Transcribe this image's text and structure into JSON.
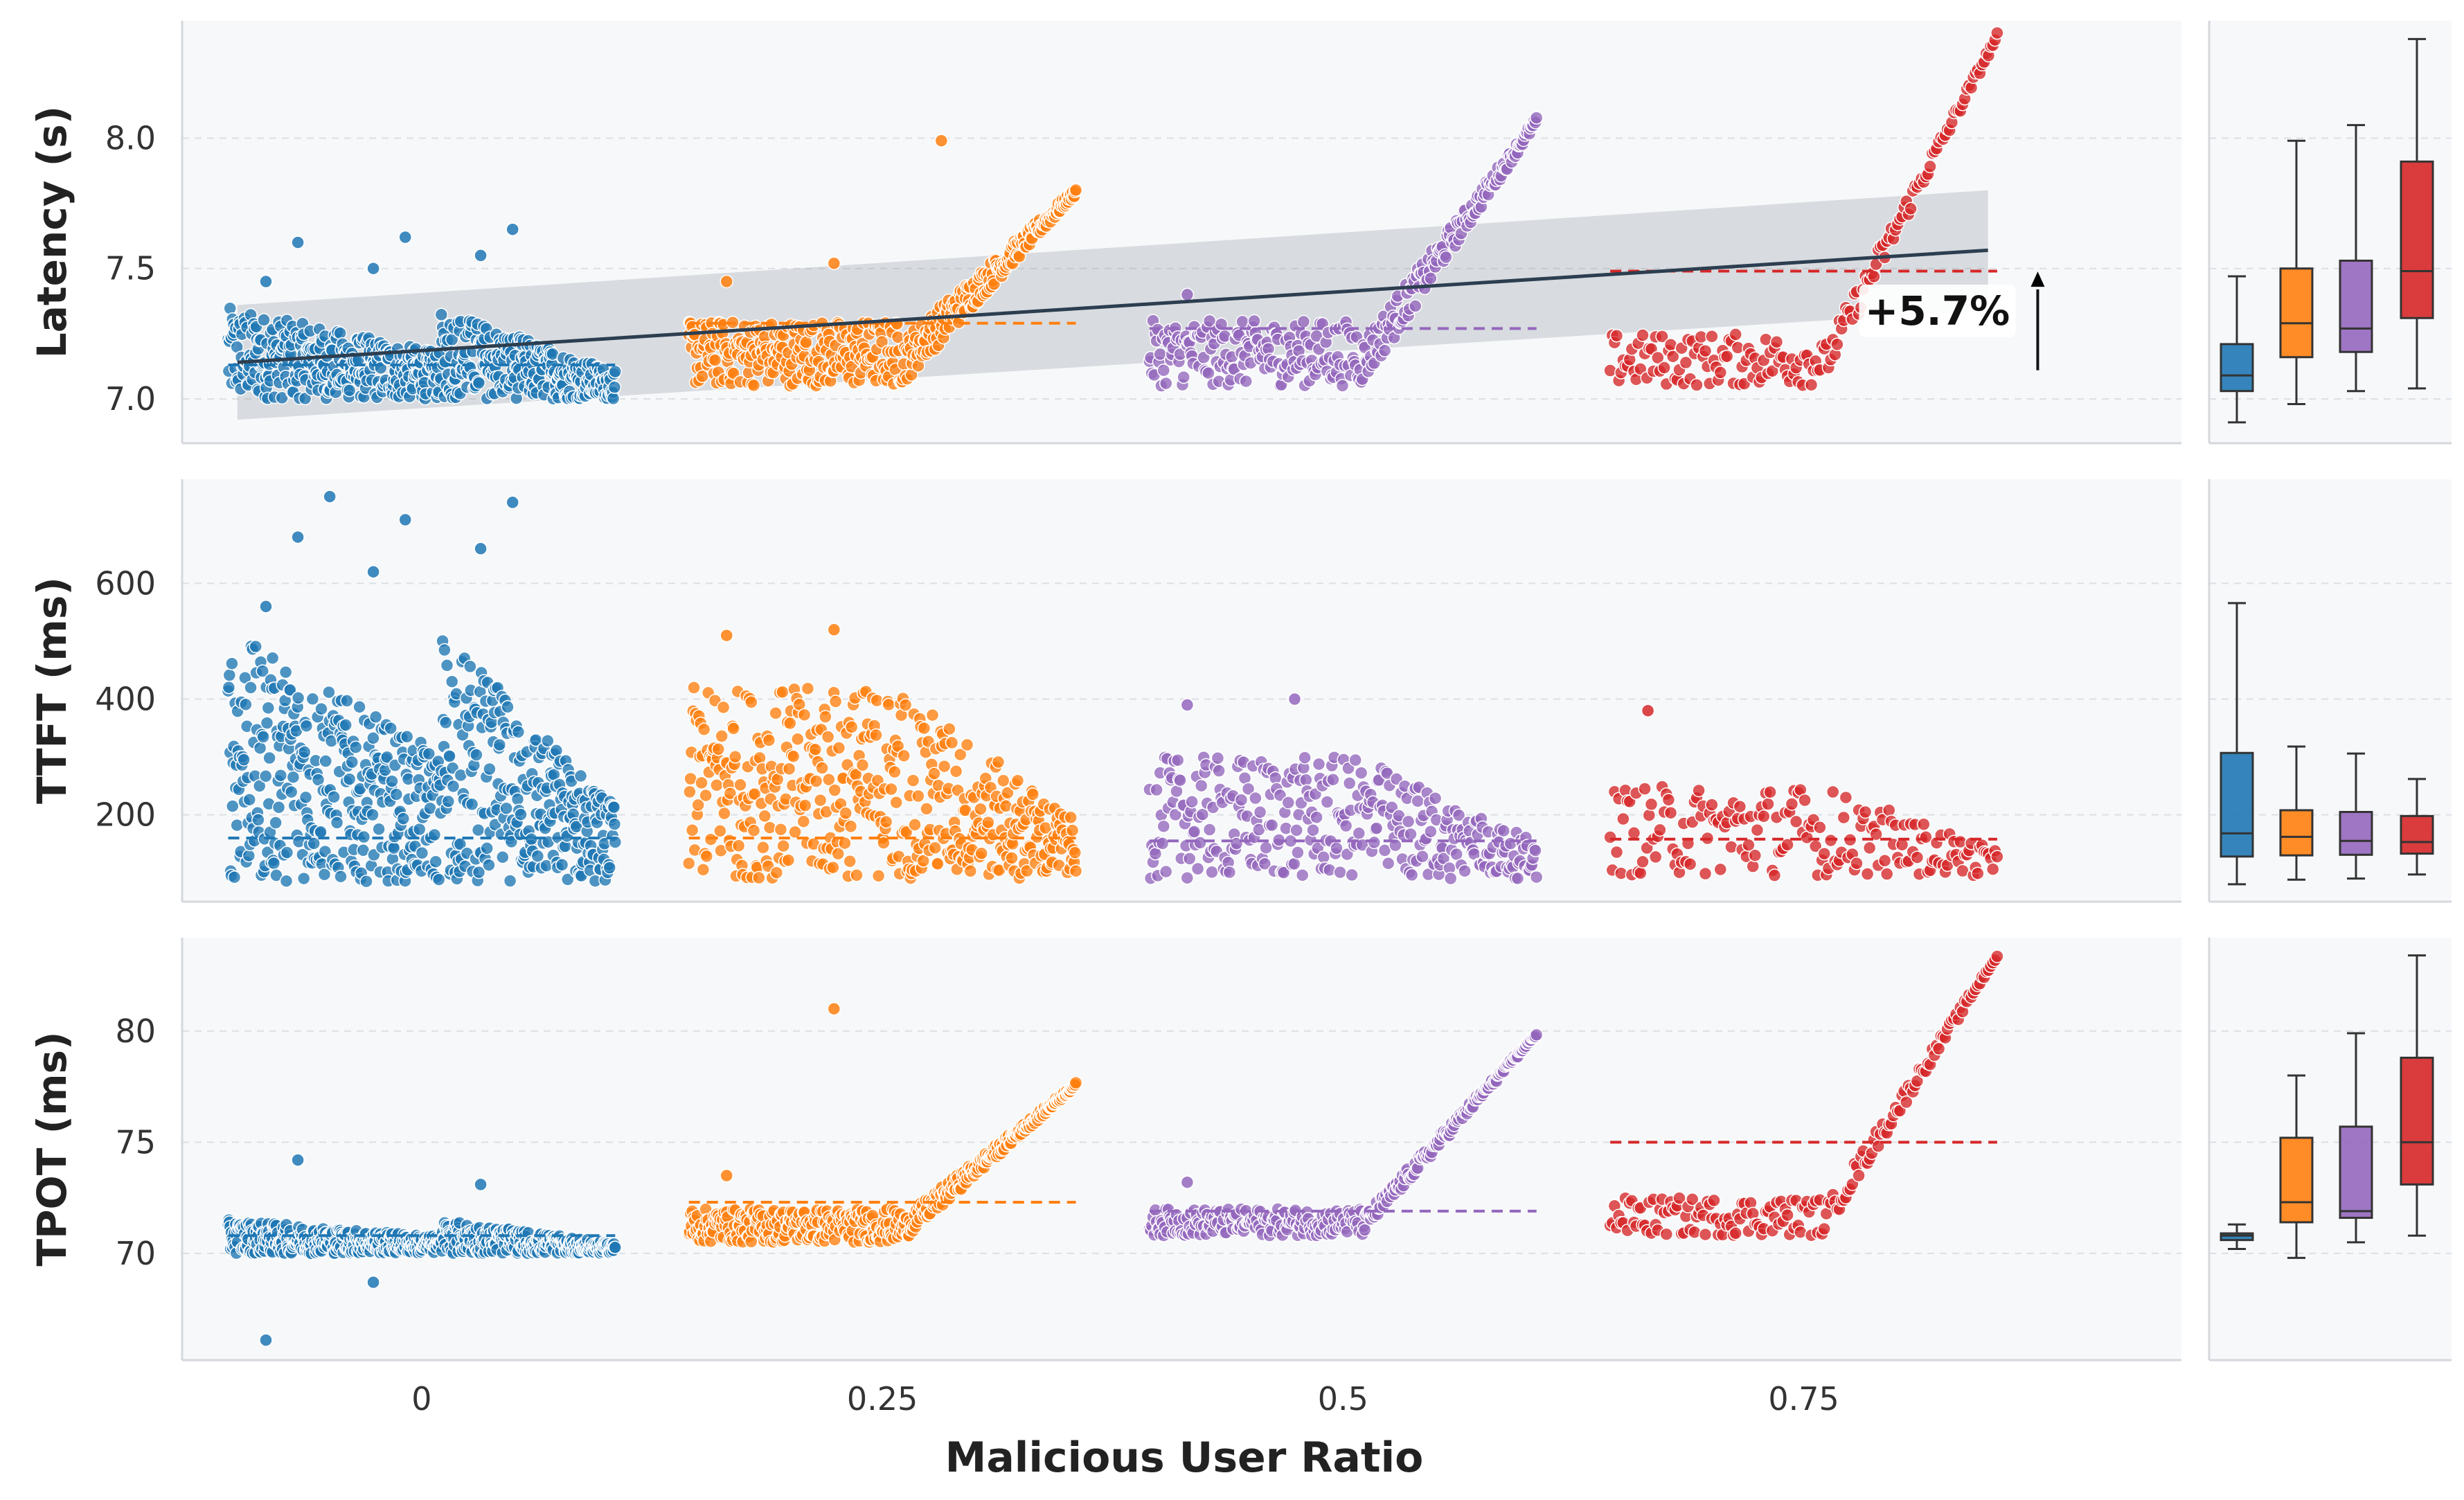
{
  "chart_data": {
    "type": "scatter",
    "title": "",
    "xlabel": "Malicious User Ratio",
    "categories": [
      "0",
      "0.25",
      "0.5",
      "0.75"
    ],
    "group_colors": [
      "#1f77b4",
      "#ff7f0e",
      "#9467bd",
      "#d62728"
    ],
    "panels": [
      {
        "ylabel": "Latency (s)",
        "ylim": [
          6.83,
          8.45
        ],
        "yticks": [
          "7.0",
          "7.5",
          "8.0"
        ],
        "ytick_values": [
          7.0,
          7.5,
          8.0
        ],
        "means": [
          7.13,
          7.29,
          7.27,
          7.49
        ],
        "scatter_ranges": [
          {
            "base_min": 7.0,
            "base_max": 7.35,
            "end": 7.05,
            "outliers": [
              7.45,
              7.5,
              7.55,
              7.6,
              7.62,
              7.65
            ]
          },
          {
            "base_min": 7.05,
            "base_max": 7.3,
            "end": 7.78,
            "outliers": [
              7.45,
              7.52,
              7.99
            ]
          },
          {
            "base_min": 7.05,
            "base_max": 7.3,
            "end": 8.05,
            "outliers": [
              7.4
            ]
          },
          {
            "base_min": 7.05,
            "base_max": 7.25,
            "end": 8.38,
            "outliers": []
          }
        ],
        "trend": {
          "start": 7.14,
          "end": 7.57,
          "ci_start": [
            6.92,
            7.36
          ],
          "ci_end": [
            7.34,
            7.8
          ]
        },
        "annotation": "+5.7%",
        "boxes": [
          {
            "whisker_low": 6.91,
            "q1": 7.03,
            "median": 7.09,
            "q3": 7.21,
            "whisker_high": 7.47
          },
          {
            "whisker_low": 6.98,
            "q1": 7.16,
            "median": 7.29,
            "q3": 7.5,
            "whisker_high": 7.99
          },
          {
            "whisker_low": 7.03,
            "q1": 7.18,
            "median": 7.27,
            "q3": 7.53,
            "whisker_high": 8.05
          },
          {
            "whisker_low": 7.04,
            "q1": 7.31,
            "median": 7.49,
            "q3": 7.91,
            "whisker_high": 8.38
          }
        ]
      },
      {
        "ylabel": "TTFT (ms)",
        "ylim": [
          50,
          780
        ],
        "yticks": [
          "200",
          "400",
          "600"
        ],
        "ytick_values": [
          200,
          400,
          600
        ],
        "means": [
          160,
          160,
          155,
          158
        ],
        "scatter_ranges": [
          {
            "base_min": 85,
            "base_max": 520,
            "end": 110,
            "outliers": [
              560,
              620,
              660,
              680,
              710,
              740,
              750
            ]
          },
          {
            "base_min": 90,
            "base_max": 420,
            "end": 120,
            "outliers": [
              510,
              520
            ]
          },
          {
            "base_min": 90,
            "base_max": 300,
            "end": 120,
            "outliers": [
              390,
              400
            ]
          },
          {
            "base_min": 95,
            "base_max": 250,
            "end": 140,
            "outliers": [
              380
            ]
          }
        ],
        "boxes": [
          {
            "whisker_low": 80,
            "q1": 128,
            "median": 168,
            "q3": 307,
            "whisker_high": 566
          },
          {
            "whisker_low": 88,
            "q1": 130,
            "median": 162,
            "q3": 208,
            "whisker_high": 318
          },
          {
            "whisker_low": 90,
            "q1": 131,
            "median": 155,
            "q3": 205,
            "whisker_high": 306
          },
          {
            "whisker_low": 97,
            "q1": 133,
            "median": 153,
            "q3": 198,
            "whisker_high": 262
          }
        ]
      },
      {
        "ylabel": "TPOT (ms)",
        "ylim": [
          65.2,
          84.2
        ],
        "yticks": [
          "70",
          "75",
          "80"
        ],
        "ytick_values": [
          70,
          75,
          80
        ],
        "means": [
          70.8,
          72.3,
          71.9,
          75.0
        ],
        "scatter_ranges": [
          {
            "base_min": 70.0,
            "base_max": 71.5,
            "end": 70.6,
            "outliers": [
              66.1,
              68.7,
              73.1,
              74.2
            ]
          },
          {
            "base_min": 70.5,
            "base_max": 72.0,
            "end": 77.5,
            "outliers": [
              73.5,
              81.0
            ]
          },
          {
            "base_min": 70.8,
            "base_max": 72.0,
            "end": 79.8,
            "outliers": [
              73.2
            ]
          },
          {
            "base_min": 70.8,
            "base_max": 72.5,
            "end": 83.3,
            "outliers": []
          }
        ],
        "boxes": [
          {
            "whisker_low": 70.2,
            "q1": 70.6,
            "median": 70.8,
            "q3": 70.9,
            "whisker_high": 71.3
          },
          {
            "whisker_low": 69.8,
            "q1": 71.4,
            "median": 72.3,
            "q3": 75.2,
            "whisker_high": 78.0
          },
          {
            "whisker_low": 70.5,
            "q1": 71.6,
            "median": 71.9,
            "q3": 75.7,
            "whisker_high": 79.9
          },
          {
            "whisker_low": 70.8,
            "q1": 73.1,
            "median": 75.0,
            "q3": 78.8,
            "whisker_high": 83.4
          }
        ]
      }
    ]
  }
}
